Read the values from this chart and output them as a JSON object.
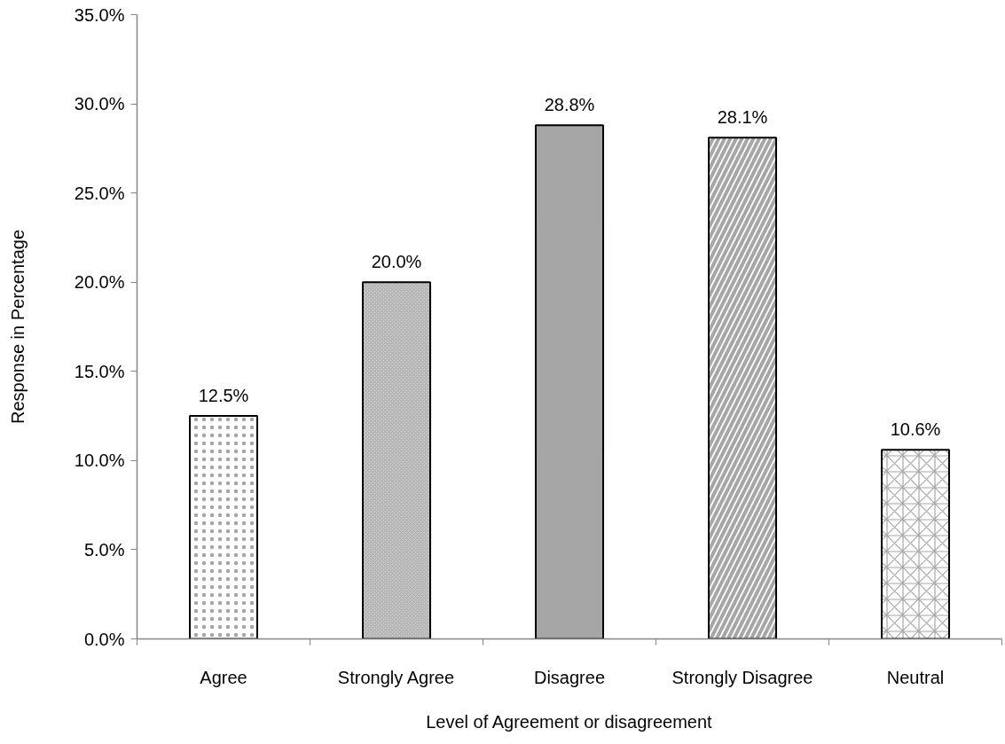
{
  "chart_data": {
    "type": "bar",
    "xlabel": "Level of Agreement or disagreement",
    "ylabel": "Response in Percentage",
    "categories": [
      "Agree",
      "Strongly Agree",
      "Disagree",
      "Strongly Disagree",
      "Neutral"
    ],
    "values": [
      12.5,
      20.0,
      28.8,
      28.1,
      10.6
    ],
    "value_labels": [
      "12.5%",
      "20.0%",
      "28.8%",
      "28.1%",
      "10.6%"
    ],
    "colors": [
      "#ffffff",
      "#c8c8c8",
      "#a6a6a6",
      "#ffffff",
      "#ffffff"
    ],
    "ylim": [
      0,
      35
    ],
    "yticks": [
      {
        "value": 0,
        "label": "0.0%"
      },
      {
        "value": 5,
        "label": "5.0%"
      },
      {
        "value": 10,
        "label": "10.0%"
      },
      {
        "value": 15,
        "label": "15.0%"
      },
      {
        "value": 20,
        "label": "20.0%"
      },
      {
        "value": 25,
        "label": "25.0%"
      },
      {
        "value": 30,
        "label": "30.0%"
      },
      {
        "value": 35,
        "label": "35.0%"
      }
    ],
    "grid": false
  }
}
